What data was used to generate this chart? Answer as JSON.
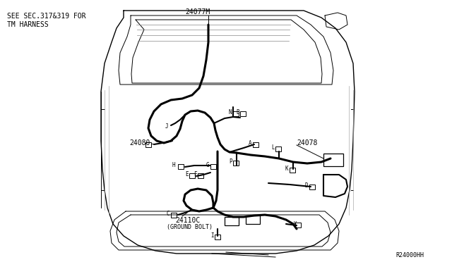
{
  "bg_color": "#ffffff",
  "line_color": "#000000",
  "text_color": "#000000",
  "fig_width": 6.4,
  "fig_height": 3.72,
  "dpi": 100,
  "top_left_text1": "SEE SEC.317&319 FOR",
  "top_left_text2": "TM HARNESS",
  "label_24077M": "24077M",
  "label_24080": "24080",
  "label_24078": "24078",
  "label_24110C": "24110C",
  "label_ground": "(GROUND BOLT)",
  "label_r24000hh": "R24000HH"
}
